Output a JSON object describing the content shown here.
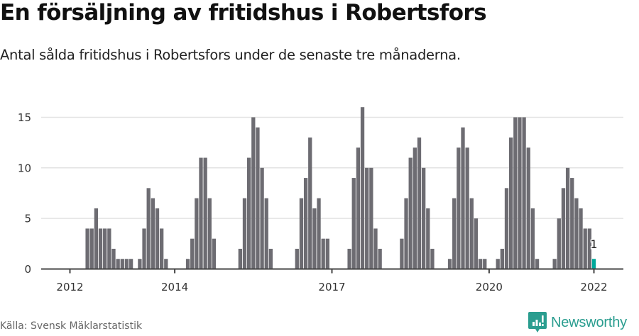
{
  "header": {
    "title": "En försäljning av fritidshus i Robertsfors",
    "subtitle": "Antal sålda fritidshus i Robertsfors under de senaste tre månaderna."
  },
  "footer": {
    "source": "Källa: Svensk Mäklarstatistik",
    "brand": "Newsworthy",
    "brand_icon": "newsworthy-logo-icon"
  },
  "colors": {
    "bar": "#6d6c72",
    "highlight": "#00a89a",
    "grid": "#e3e3e3",
    "axis": "#444444",
    "brand": "#2a9d8f"
  },
  "chart_data": {
    "type": "bar",
    "title": "En försäljning av fritidshus i Robertsfors",
    "subtitle": "Antal sålda fritidshus i Robertsfors under de senaste tre månaderna.",
    "xlabel": "",
    "ylabel": "",
    "ylim": [
      0,
      16.5
    ],
    "yticks": [
      0,
      5,
      10,
      15
    ],
    "xticks": [
      {
        "label": "2012",
        "index": 0
      },
      {
        "label": "2014",
        "index": 24
      },
      {
        "label": "2017",
        "index": 60
      },
      {
        "label": "2020",
        "index": 96
      },
      {
        "label": "2022",
        "index": 120
      }
    ],
    "grid": true,
    "start": "2012-01",
    "frequency": "monthly",
    "highlight_last": true,
    "last_value_label": "1",
    "values": [
      0,
      0,
      0,
      0,
      4,
      4,
      6,
      4,
      4,
      4,
      2,
      1,
      1,
      1,
      1,
      0,
      1,
      4,
      8,
      7,
      6,
      4,
      1,
      0,
      0,
      0,
      0,
      1,
      3,
      7,
      11,
      11,
      7,
      3,
      0,
      0,
      0,
      0,
      0,
      2,
      7,
      11,
      15,
      14,
      10,
      7,
      2,
      0,
      0,
      0,
      0,
      0,
      2,
      7,
      9,
      13,
      6,
      7,
      3,
      3,
      0,
      0,
      0,
      0,
      2,
      9,
      12,
      16,
      10,
      10,
      4,
      2,
      0,
      0,
      0,
      0,
      3,
      7,
      11,
      12,
      13,
      10,
      6,
      2,
      0,
      0,
      0,
      1,
      7,
      12,
      14,
      12,
      7,
      5,
      1,
      1,
      0,
      0,
      1,
      2,
      8,
      13,
      15,
      15,
      15,
      12,
      6,
      1,
      0,
      0,
      0,
      1,
      5,
      8,
      10,
      9,
      7,
      6,
      4,
      4,
      1
    ]
  }
}
